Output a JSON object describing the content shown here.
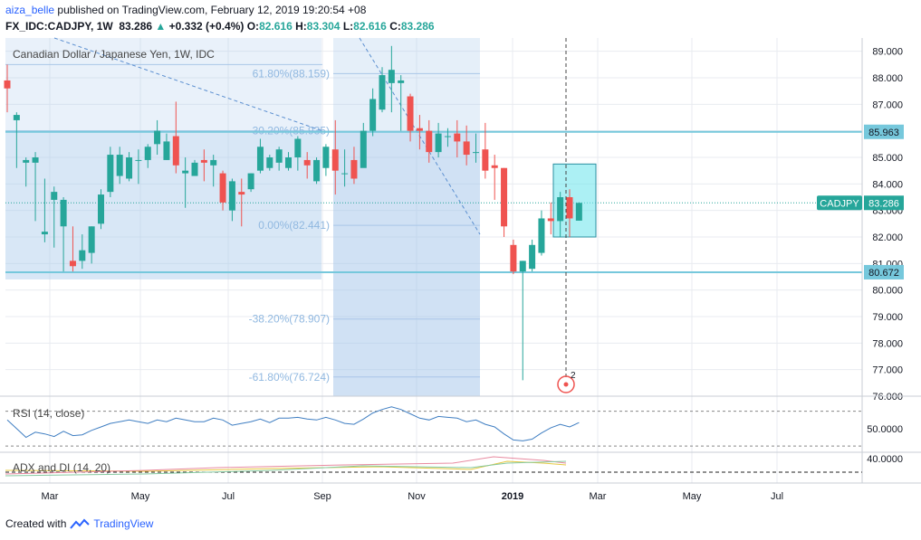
{
  "header": {
    "author": "aiza_belle",
    "published": "published on TradingView.com, February 12, 2019 19:20:54 +08",
    "symbol": "FX_IDC:CADJPY, 1W",
    "last": "83.286",
    "change": "+0.332 (+0.4%)",
    "open_label": "O:",
    "open": "82.616",
    "high_label": "H:",
    "high": "83.304",
    "low_label": "L:",
    "low": "82.616",
    "close_label": "C:",
    "close": "83.286"
  },
  "footer": {
    "created_with": "Created with",
    "brand": "TradingView"
  },
  "colors": {
    "up": "#26a69a",
    "down": "#ef5350",
    "grid": "#e8ebf0",
    "fib_line": "#a9c6e8",
    "fib_text": "#90b8e0",
    "hline": "#76c8dc",
    "zone": "#a9c9ec",
    "box": "#75e6ec",
    "rsi": "#3f7ec2"
  },
  "chart_data": {
    "type": "candlestick",
    "title": "Canadian Dollar / Japanese Yen, 1W, IDC",
    "y_axis": {
      "min": 76.0,
      "max": 89.5,
      "ticks": [
        "89.000",
        "88.000",
        "87.000",
        "86.000",
        "85.000",
        "84.000",
        "83.000",
        "82.000",
        "81.000",
        "80.000",
        "79.000",
        "78.000",
        "77.000",
        "76.000"
      ]
    },
    "x_ticks": [
      "Mar",
      "May",
      "Jul",
      "Sep",
      "Nov",
      "2019",
      "Mar",
      "May",
      "Jul"
    ],
    "candles": [
      [
        87.9,
        87.6,
        88.5,
        86.7
      ],
      [
        86.4,
        86.6,
        86.7,
        84.6
      ],
      [
        84.8,
        84.9,
        85.0,
        83.9
      ],
      [
        84.8,
        85.0,
        85.2,
        82.6
      ],
      [
        82.1,
        82.2,
        84.2,
        81.8
      ],
      [
        83.4,
        83.7,
        83.9,
        81.6
      ],
      [
        82.4,
        83.4,
        83.5,
        80.7
      ],
      [
        81.1,
        80.9,
        82.4,
        80.7
      ],
      [
        81.1,
        81.5,
        82.1,
        80.8
      ],
      [
        81.4,
        82.4,
        82.4,
        81.0
      ],
      [
        82.5,
        83.6,
        83.8,
        82.3
      ],
      [
        83.7,
        85.1,
        85.4,
        83.5
      ],
      [
        84.3,
        85.1,
        85.4,
        84.0
      ],
      [
        84.2,
        85.0,
        85.2,
        84.1
      ],
      [
        84.9,
        84.9,
        85.3,
        84.0
      ],
      [
        84.9,
        85.4,
        85.5,
        84.6
      ],
      [
        85.5,
        86.0,
        86.4,
        85.1
      ],
      [
        84.9,
        85.6,
        85.9,
        84.9
      ],
      [
        85.8,
        84.7,
        87.1,
        84.4
      ],
      [
        84.4,
        84.5,
        85.0,
        83.1
      ],
      [
        84.3,
        84.8,
        84.9,
        84.3
      ],
      [
        84.9,
        84.8,
        85.3,
        84.1
      ],
      [
        84.7,
        84.9,
        85.1,
        83.9
      ],
      [
        84.4,
        83.3,
        84.5,
        83.0
      ],
      [
        83.0,
        84.1,
        84.2,
        82.6
      ],
      [
        83.7,
        83.6,
        84.2,
        82.4
      ],
      [
        83.8,
        84.4,
        84.4,
        83.7
      ],
      [
        84.5,
        85.4,
        85.7,
        84.4
      ],
      [
        84.6,
        85.0,
        85.1,
        84.5
      ],
      [
        84.8,
        85.3,
        85.4,
        84.5
      ],
      [
        84.6,
        85.0,
        85.2,
        84.5
      ],
      [
        85.0,
        85.7,
        85.8,
        84.5
      ],
      [
        84.9,
        84.7,
        85.2,
        84.2
      ],
      [
        84.1,
        84.9,
        85.0,
        84.0
      ],
      [
        84.6,
        85.4,
        85.5,
        84.3
      ],
      [
        85.3,
        84.5,
        86.4,
        83.6
      ],
      [
        84.4,
        84.4,
        85.3,
        83.9
      ],
      [
        84.9,
        84.2,
        85.4,
        84.0
      ],
      [
        84.6,
        86.0,
        86.3,
        84.7
      ],
      [
        86.0,
        87.2,
        87.6,
        85.8
      ],
      [
        86.8,
        88.1,
        88.4,
        86.7
      ],
      [
        87.8,
        88.3,
        89.2,
        86.7
      ],
      [
        87.8,
        87.9,
        88.1,
        86.0
      ],
      [
        87.3,
        86.0,
        87.4,
        85.6
      ],
      [
        86.1,
        86.0,
        86.6,
        85.3
      ],
      [
        86.0,
        85.2,
        86.4,
        84.8
      ],
      [
        85.2,
        85.9,
        86.3,
        85.0
      ],
      [
        85.8,
        85.8,
        86.1,
        85.4
      ],
      [
        85.9,
        85.6,
        86.4,
        85.0
      ],
      [
        85.6,
        85.1,
        86.2,
        84.7
      ],
      [
        85.2,
        85.2,
        85.9,
        84.8
      ],
      [
        85.3,
        84.5,
        86.3,
        84.2
      ],
      [
        84.7,
        84.6,
        85.1,
        83.4
      ],
      [
        84.6,
        82.4,
        84.6,
        82.0
      ],
      [
        81.7,
        80.7,
        81.9,
        80.6
      ],
      [
        80.7,
        81.1,
        81.1,
        76.6
      ],
      [
        80.8,
        81.7,
        81.9,
        80.7
      ],
      [
        81.4,
        82.7,
        83.0,
        81.3
      ],
      [
        82.7,
        82.6,
        83.3,
        82.1
      ],
      [
        82.6,
        83.5,
        83.7,
        82.0
      ],
      [
        83.5,
        82.7,
        83.8,
        82.0
      ],
      [
        82.616,
        83.286,
        83.304,
        82.616
      ]
    ],
    "levels": [
      {
        "label": "85.963",
        "value": 85.963
      },
      {
        "label": "80.672",
        "value": 80.672
      }
    ],
    "symbol_tag": {
      "label": "CADJPY",
      "value": "83.286"
    },
    "fib_left": [
      {
        "text": "30.20%(85.935)",
        "value": 86.0
      }
    ],
    "fib_right": [
      {
        "text": "61.80%(88.159)",
        "value": 88.159
      },
      {
        "text": "0.00%(82.441)",
        "value": 82.441
      },
      {
        "text": "-38.20%(78.907)",
        "value": 78.907
      },
      {
        "text": "-61.80%(76.724)",
        "value": 76.724
      }
    ],
    "rsi": {
      "label": "RSI (14, close)",
      "ticks": [
        "50.0000"
      ],
      "values": [
        60,
        50,
        40,
        46,
        44,
        41,
        47,
        42,
        43,
        48,
        52,
        56,
        58,
        60,
        58,
        56,
        60,
        58,
        62,
        60,
        58,
        58,
        62,
        60,
        54,
        56,
        58,
        61,
        57,
        62,
        62,
        63,
        61,
        60,
        63,
        60,
        56,
        55,
        61,
        68,
        72,
        75,
        72,
        67,
        62,
        60,
        64,
        63,
        62,
        58,
        60,
        55,
        52,
        44,
        37,
        36,
        38,
        45,
        51,
        55,
        52,
        57
      ]
    },
    "adx": {
      "label": "ADX and DI (14, 20)",
      "ticks": [
        "40.0000"
      ]
    },
    "marker": {
      "label": "2"
    }
  }
}
